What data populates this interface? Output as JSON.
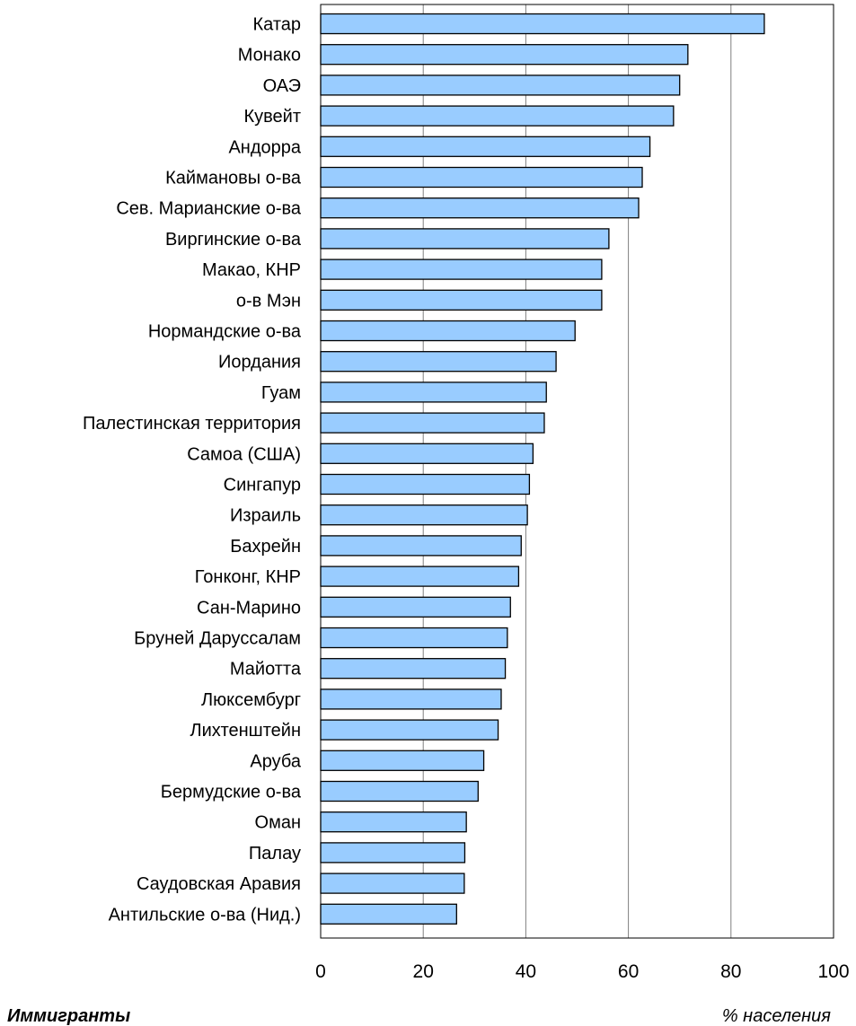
{
  "chart_data": {
    "type": "bar",
    "orientation": "horizontal",
    "categories": [
      "Катар",
      "Монако",
      "ОАЭ",
      "Кувейт",
      "Андорра",
      "Каймановы о-ва",
      "Сев. Марианские о-ва",
      "Виргинские о-ва",
      "Макао, КНР",
      "о-в Мэн",
      "Нормандские о-ва",
      "Иордания",
      "Гуам",
      "Палестинская территория",
      "Самоа (США)",
      "Сингапур",
      "Израиль",
      "Бахрейн",
      "Гонконг, КНР",
      "Сан-Марино",
      "Бруней Даруссалам",
      "Майотта",
      "Люксембург",
      "Лихтенштейн",
      "Аруба",
      "Бермудские о-ва",
      "Оман",
      "Палау",
      "Саудовская Аравия",
      "Антильские о-ва (Нид.)"
    ],
    "values": [
      86.5,
      71.6,
      70.0,
      68.8,
      64.2,
      62.7,
      62.0,
      56.2,
      54.8,
      54.8,
      49.6,
      45.9,
      44.0,
      43.6,
      41.4,
      40.7,
      40.3,
      39.1,
      38.6,
      37.0,
      36.4,
      36.0,
      35.2,
      34.6,
      31.8,
      30.7,
      28.4,
      28.1,
      28.0,
      26.5
    ],
    "xlim": [
      0,
      100
    ],
    "xticks": [
      "0",
      "20",
      "40",
      "60",
      "80",
      "100"
    ],
    "grid": true,
    "bar_color": "#99ccff",
    "bar_edge_color": "#000000",
    "footer_left": "Иммигранты",
    "footer_right": "% населения"
  }
}
